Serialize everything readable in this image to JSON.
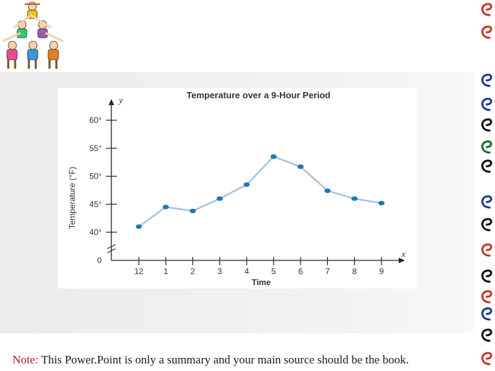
{
  "slide": {
    "note_label": "Note:",
    "note_text": " This Power.Point is only a summary and your main source should be the book."
  },
  "decorations": {
    "logo_icon": "children-pyramid-icon",
    "border_icon": "swirl-border-icon",
    "swirl_colors": [
      "#c0392b",
      "#1f3a8a",
      "#1e6b2e",
      "#111111"
    ]
  },
  "chart_data": {
    "type": "line",
    "title": "Temperature over a 9-Hour Period",
    "xlabel": "Time",
    "ylabel": "Temperature (°F)",
    "x_axis_letter": "x",
    "y_axis_letter": "y",
    "categories": [
      "12",
      "1",
      "2",
      "3",
      "4",
      "5",
      "6",
      "7",
      "8",
      "9"
    ],
    "values": [
      41,
      44.5,
      43.8,
      46,
      48.5,
      53.5,
      51.7,
      47.4,
      46,
      45.2
    ],
    "y_ticks": [
      {
        "value": 0,
        "label": "0"
      },
      {
        "value": 40,
        "label": "40°"
      },
      {
        "value": 45,
        "label": "45°"
      },
      {
        "value": 50,
        "label": "50°"
      },
      {
        "value": 55,
        "label": "55°"
      },
      {
        "value": 60,
        "label": "60°"
      }
    ],
    "axis_break": true,
    "line_color": "#a9c3e0",
    "point_color": "#1f77b4",
    "grid": false
  }
}
